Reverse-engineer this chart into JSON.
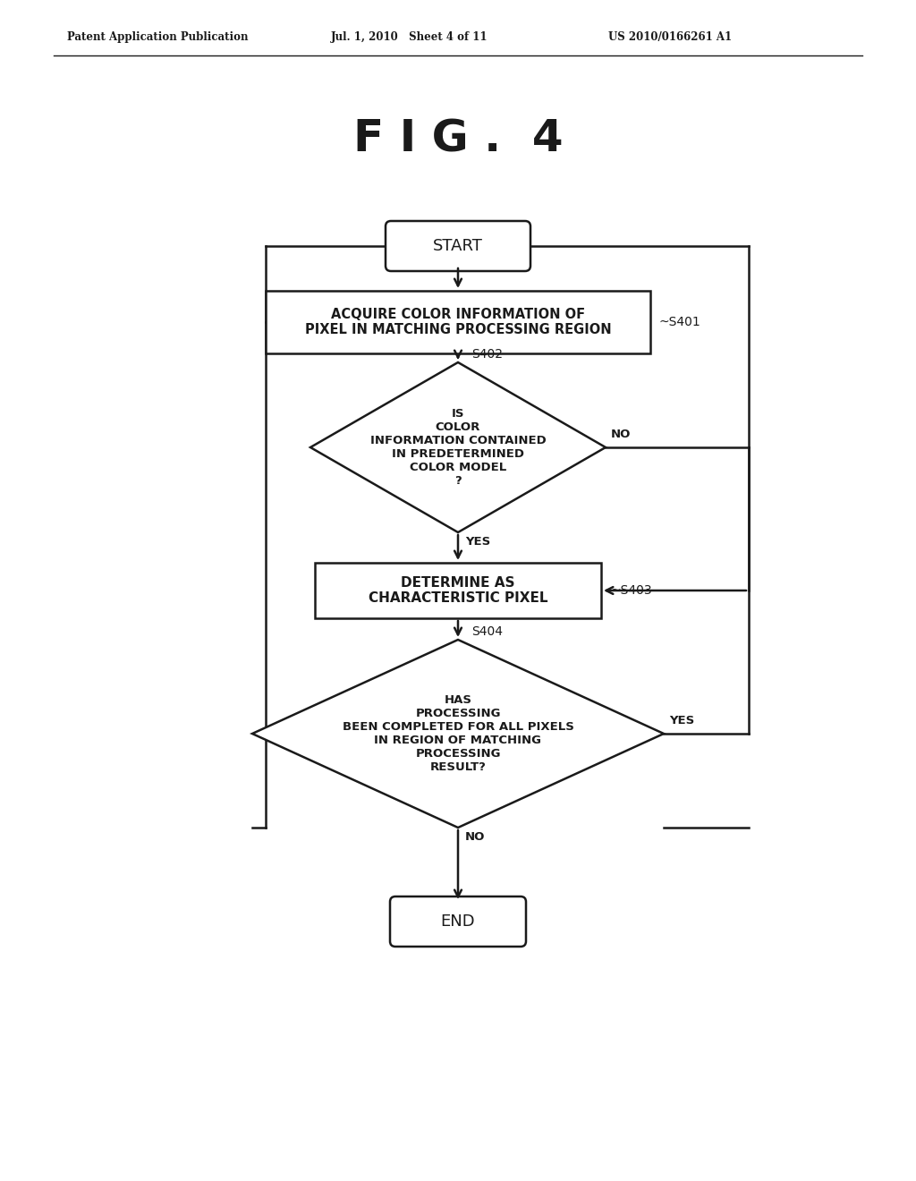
{
  "title": "F I G .  4",
  "header_left": "Patent Application Publication",
  "header_mid": "Jul. 1, 2010   Sheet 4 of 11",
  "header_right": "US 2010/0166261 A1",
  "background_color": "#ffffff",
  "line_color": "#1a1a1a",
  "text_color": "#1a1a1a",
  "start_label": "START",
  "end_label": "END",
  "s401_label": "ACQUIRE COLOR INFORMATION OF\nPIXEL IN MATCHING PROCESSING REGION",
  "s401_tag": "~S401",
  "s402_label": "IS\nCOLOR\nINFORMATION CONTAINED\nIN PREDETERMINED\nCOLOR MODEL\n?",
  "s402_tag": "S402",
  "s403_label": "DETERMINE AS\nCHARACTERISTIC PIXEL",
  "s403_tag": "~S403",
  "s404_label": "HAS\nPROCESSING\nBEEN COMPLETED FOR ALL PIXELS\nIN REGION OF MATCHING\nPROCESSING\nRESULT?",
  "s404_tag": "S404",
  "yes_label": "YES",
  "no_label": "NO"
}
